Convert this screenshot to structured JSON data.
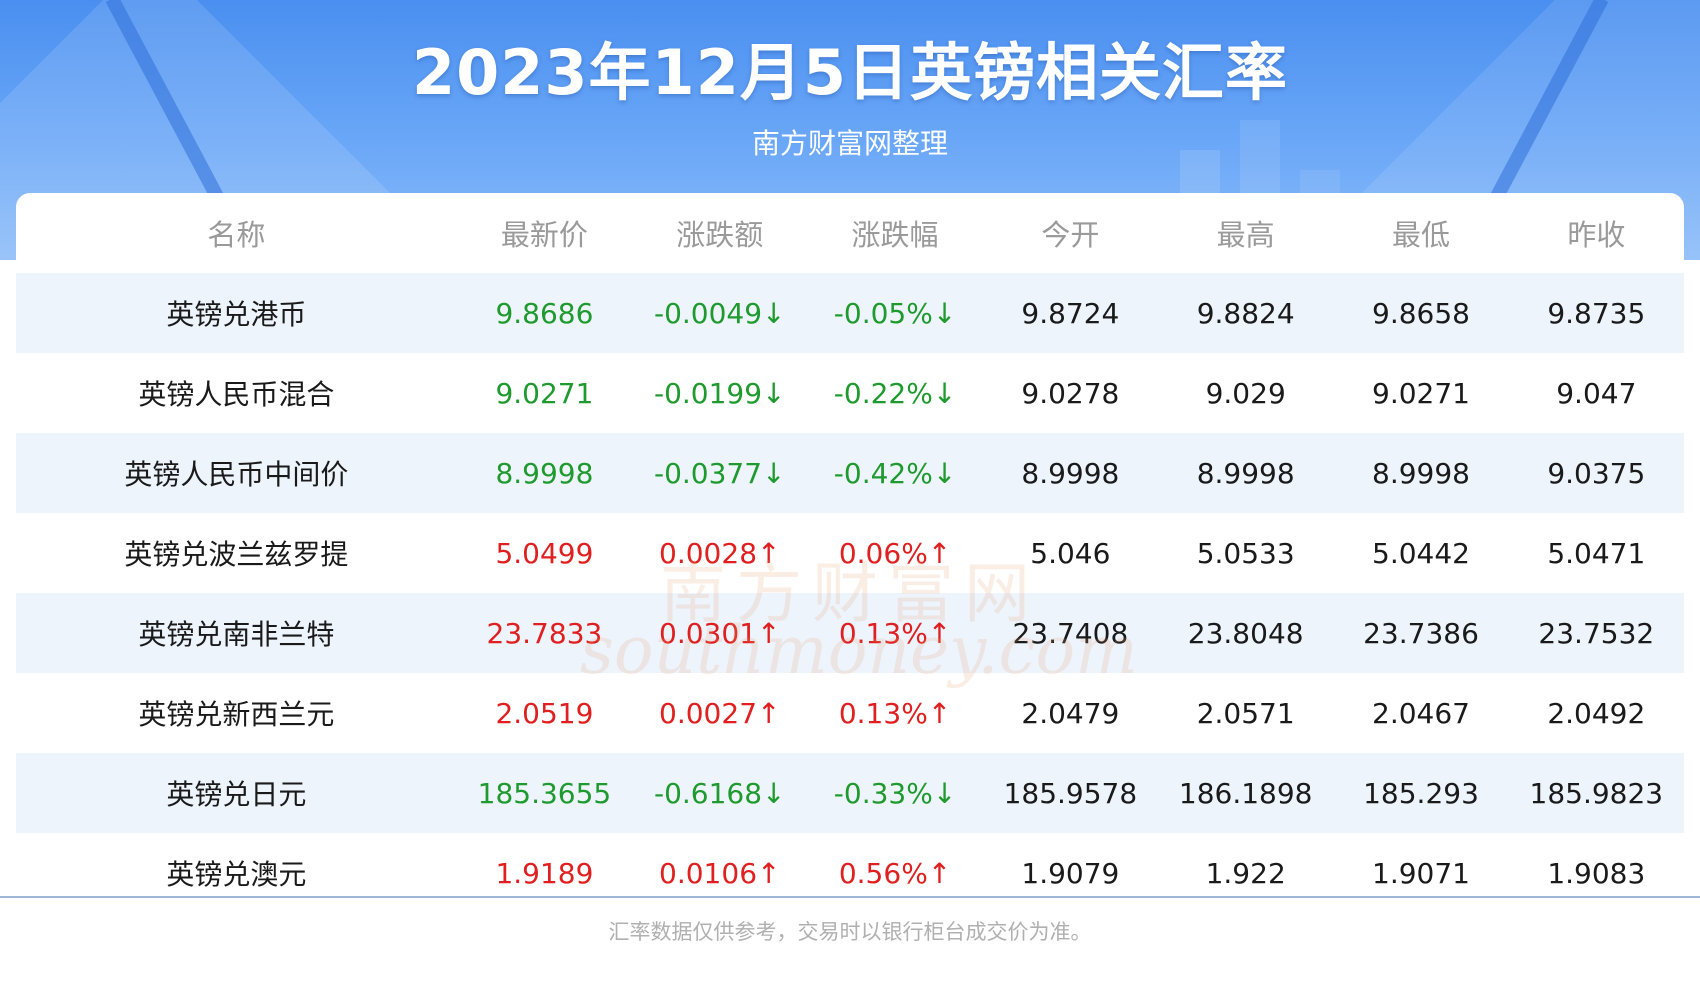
{
  "header": {
    "title": "2023年12月5日英镑相关汇率",
    "subtitle": "南方财富网整理"
  },
  "table": {
    "columns": [
      "名称",
      "最新价",
      "涨跌额",
      "涨跌幅",
      "今开",
      "最高",
      "最低",
      "昨收"
    ],
    "rows": [
      {
        "name": "英镑兑港币",
        "latest": "9.8686",
        "change": "-0.0049↓",
        "change_pct": "-0.05%↓",
        "open": "9.8724",
        "high": "9.8824",
        "low": "9.8658",
        "prev_close": "9.8735",
        "direction": "down"
      },
      {
        "name": "英镑人民币混合",
        "latest": "9.0271",
        "change": "-0.0199↓",
        "change_pct": "-0.22%↓",
        "open": "9.0278",
        "high": "9.029",
        "low": "9.0271",
        "prev_close": "9.047",
        "direction": "down"
      },
      {
        "name": "英镑人民币中间价",
        "latest": "8.9998",
        "change": "-0.0377↓",
        "change_pct": "-0.42%↓",
        "open": "8.9998",
        "high": "8.9998",
        "low": "8.9998",
        "prev_close": "9.0375",
        "direction": "down"
      },
      {
        "name": "英镑兑波兰兹罗提",
        "latest": "5.0499",
        "change": "0.0028↑",
        "change_pct": "0.06%↑",
        "open": "5.046",
        "high": "5.0533",
        "low": "5.0442",
        "prev_close": "5.0471",
        "direction": "up"
      },
      {
        "name": "英镑兑南非兰特",
        "latest": "23.7833",
        "change": "0.0301↑",
        "change_pct": "0.13%↑",
        "open": "23.7408",
        "high": "23.8048",
        "low": "23.7386",
        "prev_close": "23.7532",
        "direction": "up"
      },
      {
        "name": "英镑兑新西兰元",
        "latest": "2.0519",
        "change": "0.0027↑",
        "change_pct": "0.13%↑",
        "open": "2.0479",
        "high": "2.0571",
        "low": "2.0467",
        "prev_close": "2.0492",
        "direction": "up"
      },
      {
        "name": "英镑兑日元",
        "latest": "185.3655",
        "change": "-0.6168↓",
        "change_pct": "-0.33%↓",
        "open": "185.9578",
        "high": "186.1898",
        "low": "185.293",
        "prev_close": "185.9823",
        "direction": "down"
      },
      {
        "name": "英镑兑澳元",
        "latest": "1.9189",
        "change": "0.0106↑",
        "change_pct": "0.56%↑",
        "open": "1.9079",
        "high": "1.922",
        "low": "1.9071",
        "prev_close": "1.9083",
        "direction": "up"
      }
    ]
  },
  "watermark": {
    "cn": "南方财富网",
    "en": "southmoney.com"
  },
  "footer": {
    "note": "汇率数据仅供参考，交易时以银行柜台成交价为准。"
  },
  "colors": {
    "up": "#e02020",
    "down": "#1f9a2e",
    "header_blue": "#4a8ff0",
    "stripe": "#eef4fc"
  }
}
